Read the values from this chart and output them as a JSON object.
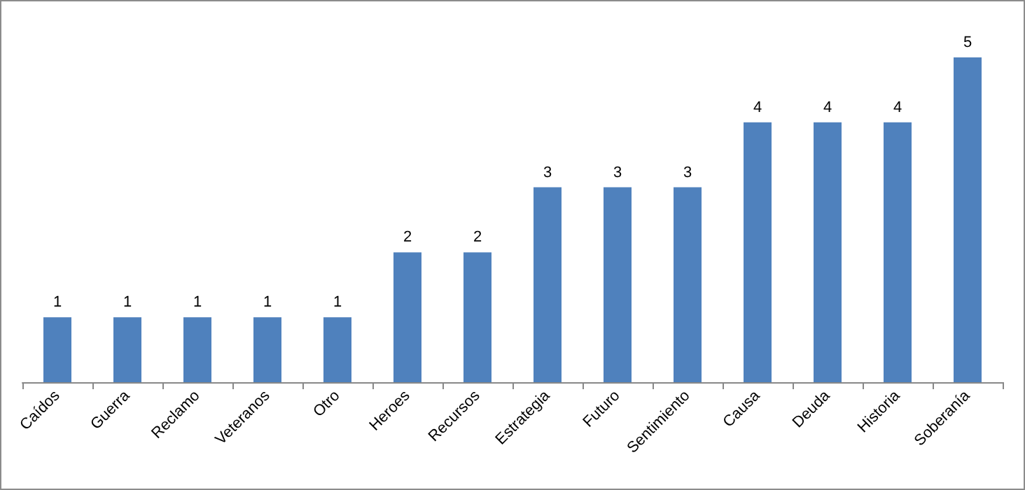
{
  "chart_data": {
    "type": "bar",
    "categories": [
      "Caídos",
      "Guerra",
      "Reclamo",
      "Veteranos",
      "Otro",
      "Heroes",
      "Recursos",
      "Estrategia",
      "Futuro",
      "Sentimiento",
      "Causa",
      "Deuda",
      "Historia",
      "Soberanía"
    ],
    "values": [
      1,
      1,
      1,
      1,
      1,
      2,
      2,
      3,
      3,
      3,
      4,
      4,
      4,
      5
    ],
    "color": "#4f81bd",
    "data_labels": true
  }
}
